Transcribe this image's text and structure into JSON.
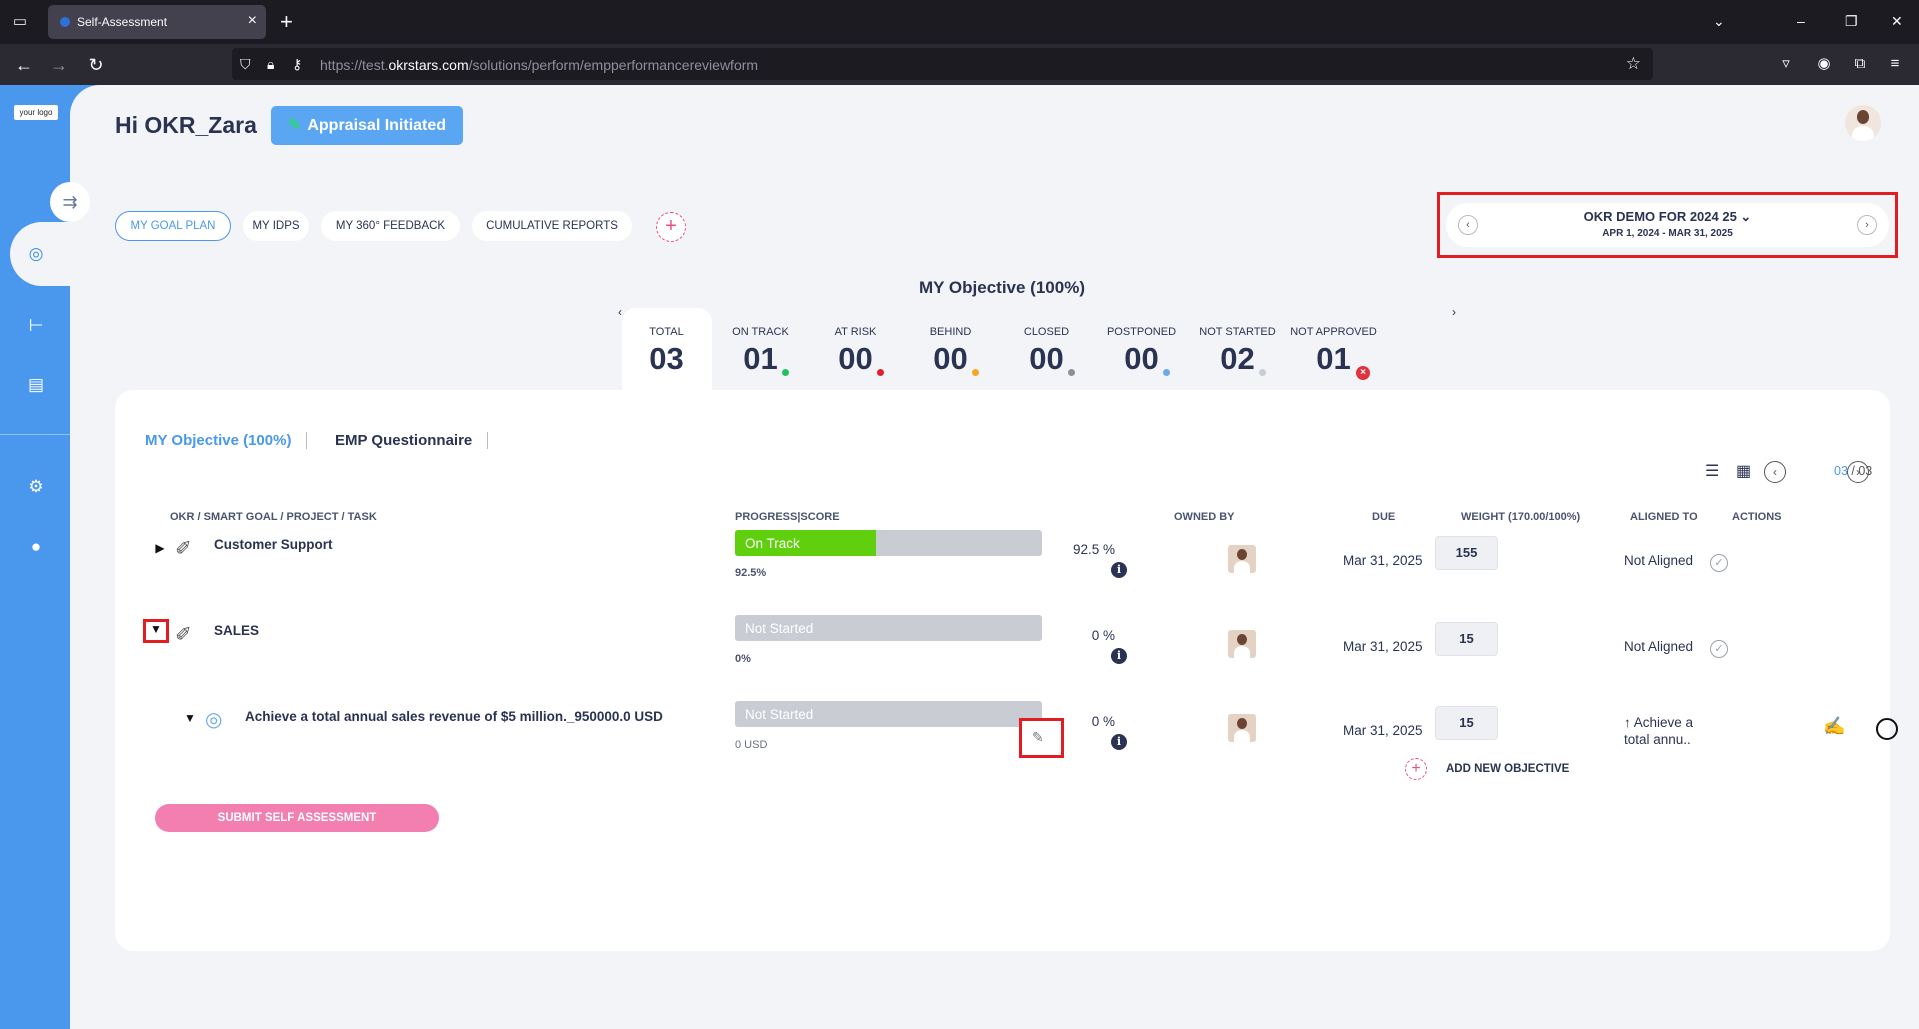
{
  "browser": {
    "tab_title": "Self-Assessment",
    "url_prefix": "https://test.",
    "url_host": "okrstars.com",
    "url_path": "/solutions/perform/empperformancereviewform"
  },
  "sidebar": {
    "logo_text": "your logo",
    "icons": [
      "goal-icon",
      "hierarchy-icon",
      "review-icon",
      "settings-icon",
      "user-icon"
    ]
  },
  "header": {
    "greeting": "Hi OKR_Zara",
    "appraisal_label": "Appraisal Initiated"
  },
  "tabs": [
    "MY GOAL PLAN",
    "MY IDPS",
    "MY 360° FEEDBACK",
    "CUMULATIVE REPORTS"
  ],
  "cycle": {
    "title": "OKR DEMO FOR 2024 25",
    "dates": "APR 1, 2024 - MAR 31, 2025"
  },
  "section_title": "MY Objective (100%)",
  "stats": [
    {
      "label": "TOTAL",
      "value": "03"
    },
    {
      "label": "ON TRACK",
      "value": "01",
      "color": "#20c05c"
    },
    {
      "label": "AT RISK",
      "value": "00",
      "color": "#e2202d"
    },
    {
      "label": "BEHIND",
      "value": "00",
      "color": "#f5a623"
    },
    {
      "label": "CLOSED",
      "value": "00",
      "color": "#8a8f99"
    },
    {
      "label": "POSTPONED",
      "value": "00",
      "color": "#6aa8f0"
    },
    {
      "label": "NOT STARTED",
      "value": "02",
      "color": "#c8ccd4"
    },
    {
      "label": "NOT APPROVED",
      "value": "01",
      "color": "#e2323f"
    }
  ],
  "subtabs": [
    "MY Objective (100%)",
    "EMP Questionnaire"
  ],
  "pagination": {
    "current": "03",
    "total": "/ 03"
  },
  "columns": {
    "okr": "OKR / SMART GOAL / PROJECT / TASK",
    "progress": "PROGRESS|SCORE",
    "owned_by": "OWNED BY",
    "due": "DUE",
    "weight": "WEIGHT (170.00/100%)",
    "aligned": "ALIGNED TO",
    "actions": "ACTIONS"
  },
  "rows": [
    {
      "title": "Customer Support",
      "status": "On Track",
      "progress": 0.46,
      "progress_sub": "92.5%",
      "score": "92.5  %",
      "due": "Mar 31, 2025",
      "weight": "155",
      "aligned": "Not Aligned"
    },
    {
      "title": "SALES",
      "status": "Not Started",
      "progress": 0,
      "progress_sub": "0%",
      "score": "0  %",
      "due": "Mar 31, 2025",
      "weight": "15",
      "aligned": "Not Aligned"
    },
    {
      "title": "Achieve a total annual sales revenue of $5 million._950000.0 USD",
      "status": "Not Started",
      "progress": 0,
      "progress_sub": "0 USD",
      "score": "0  %",
      "due": "Mar 31, 2025",
      "weight": "15",
      "aligned_line1": "↑ Achieve a",
      "aligned_line2": "total annu.."
    }
  ],
  "add_objective": "ADD NEW OBJECTIVE",
  "submit": "SUBMIT SELF ASSESSMENT"
}
